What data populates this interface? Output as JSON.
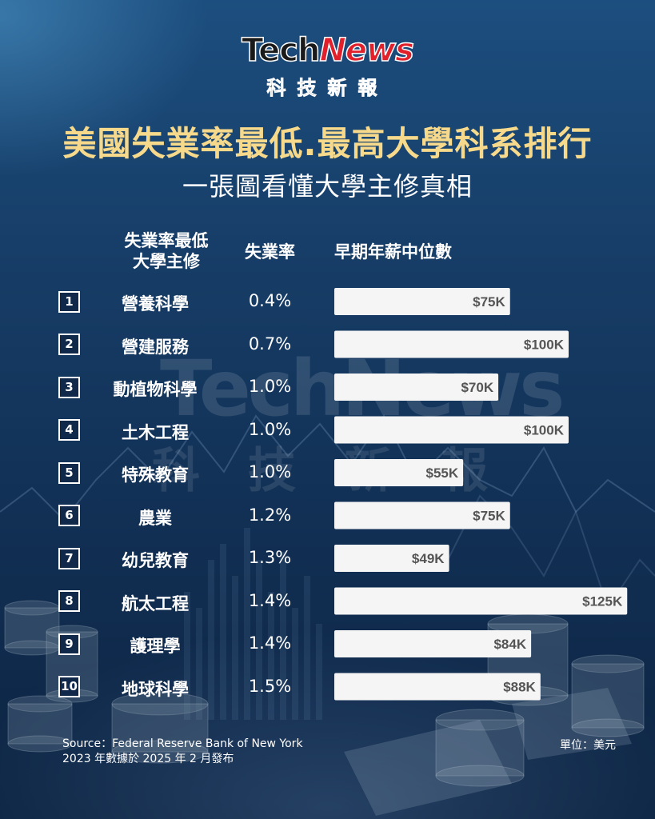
{
  "brand": {
    "logo_tech": "Tech",
    "logo_news": "News",
    "logo_sub": "科技新報"
  },
  "title": "美國失業率最低.最高大學科系排行",
  "subtitle": "一張圖看懂大學主修真相",
  "headers": {
    "major": "失業率最低\n大學主修",
    "rate": "失業率",
    "salary": "早期年薪中位數"
  },
  "chart_data": {
    "type": "bar",
    "categories": [
      "營養科學",
      "營建服務",
      "動植物科學",
      "土木工程",
      "特殊教育",
      "農業",
      "幼兒教育",
      "航太工程",
      "護理學",
      "地球科學"
    ],
    "ranks": [
      "1",
      "2",
      "3",
      "4",
      "5",
      "6",
      "7",
      "8",
      "9",
      "10"
    ],
    "unemployment_rates": [
      "0.4%",
      "0.7%",
      "1.0%",
      "1.0%",
      "1.0%",
      "1.2%",
      "1.3%",
      "1.4%",
      "1.4%",
      "1.5%"
    ],
    "values": [
      75,
      100,
      70,
      100,
      55,
      75,
      49,
      125,
      84,
      88
    ],
    "value_labels": [
      "$75K",
      "$100K",
      "$70K",
      "$100K",
      "$55K",
      "$75K",
      "$49K",
      "$125K",
      "$84K",
      "$88K"
    ],
    "bar_color": "#f5f5f5",
    "label_color": "#555555",
    "orientation": "horizontal"
  },
  "footer": {
    "source": "Source：Federal Reserve Bank of New York",
    "note": "2023 年數據於 2025 年 2 月發布",
    "unit": "單位：美元"
  },
  "colors": {
    "title": "#f6d98b",
    "background": "#163a63"
  }
}
